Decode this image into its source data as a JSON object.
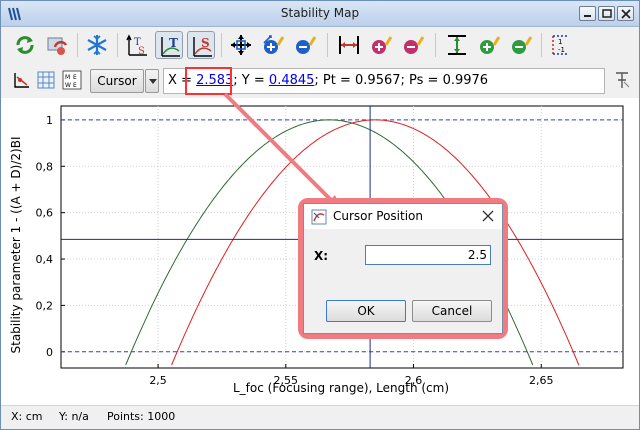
{
  "window": {
    "title": "Stability Map"
  },
  "toolbar2": {
    "cursor_mode": "Cursor",
    "readout": {
      "x_label": "X = ",
      "x_value": "2.583",
      "y_label": "; Y = ",
      "y_value": "0.4845",
      "rest": "; Pt = 0.9567; Ps = 0.9976"
    }
  },
  "plot": {
    "ylabel": "Stability parameter 1 - ((A + D)/2)BI",
    "xlabel": "L_foc (Focusing range), Length (cm)",
    "y_ticks": [
      "0",
      "0,2",
      "0,4",
      "0,6",
      "0,8",
      "1"
    ],
    "x_ticks": [
      "2,5",
      "2,55",
      "2,6",
      "2,65"
    ],
    "series_colors": [
      "#2f6b2f",
      "#e02020"
    ],
    "cursor": {
      "x": 2.583,
      "y": 0.4845
    }
  },
  "status": {
    "x_unit": "X: cm",
    "y_unit": "Y: n/a",
    "points": "Points: 1000"
  },
  "dialog": {
    "title": "Cursor Position",
    "x_label": "X:",
    "x_value": "2.5",
    "ok": "OK",
    "cancel": "Cancel"
  },
  "icons": [
    "refresh-icon",
    "reset-icon",
    "snowflake-icon",
    "ts-icon",
    "t-curve-icon",
    "s-curve-icon",
    "move-all-icon",
    "zoom-in-both-icon",
    "zoom-out-both-icon",
    "fit-x-icon",
    "zoom-in-x-icon",
    "zoom-out-x-icon",
    "fit-y-icon",
    "zoom-in-y-icon",
    "zoom-out-y-icon",
    "y-scale-icon",
    "marker-icon",
    "grid-icon",
    "table-icon",
    "pin-icon"
  ]
}
